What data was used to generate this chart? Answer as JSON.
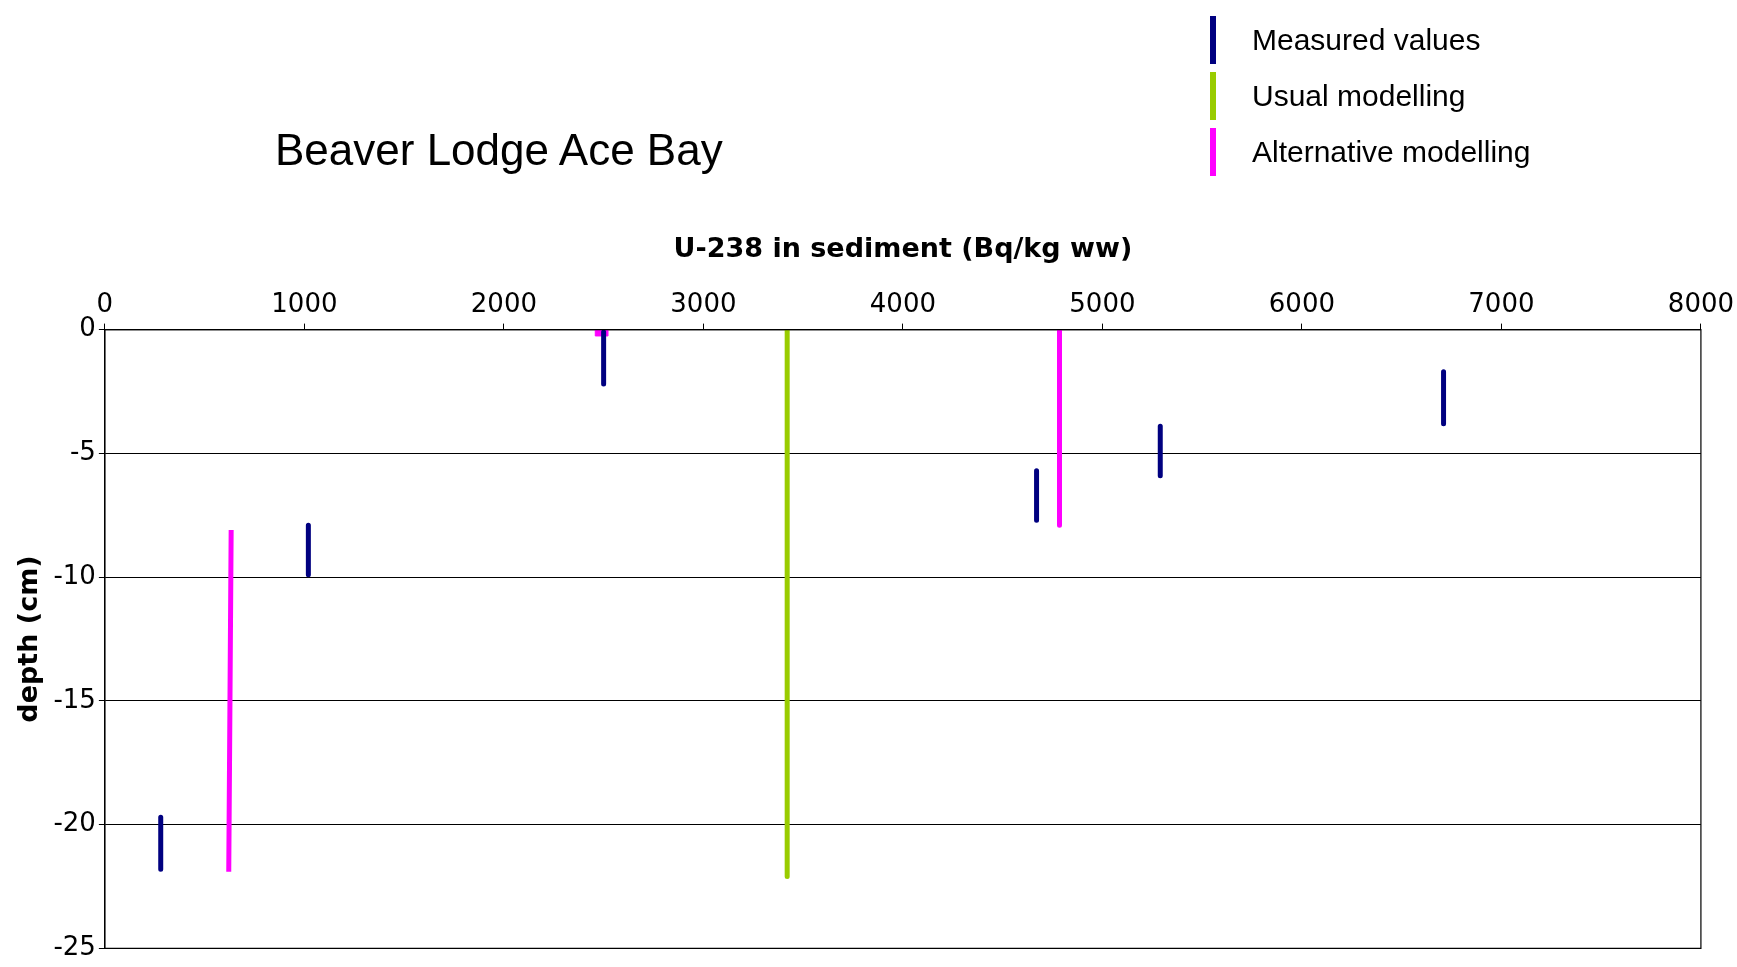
{
  "chart_data": {
    "type": "line",
    "title": "Beaver Lodge Ace Bay",
    "xlabel": "U-238 in sediment (Bq/kg ww)",
    "ylabel": "depth (cm)",
    "xlim": [
      0,
      8000
    ],
    "xticks": [
      0,
      1000,
      2000,
      3000,
      4000,
      5000,
      6000,
      7000,
      8000
    ],
    "ylim": [
      -25,
      0
    ],
    "yticks": [
      -25,
      -20,
      -15,
      -10,
      -5,
      0
    ],
    "grid": "y",
    "legend": "top right",
    "marker": "none",
    "line_style": "solid",
    "series": [
      {
        "name": "Measured values",
        "color": "#000080",
        "x": [
          280,
          280,
          null,
          1020,
          1020,
          null,
          2500,
          2500,
          null,
          4670,
          4670,
          null,
          5290,
          5290,
          null,
          6710,
          6710
        ],
        "values": [
          -19.7,
          -21.8,
          null,
          -7.9,
          -9.9,
          null,
          -0.1,
          -2.2,
          null,
          -5.7,
          -7.7,
          null,
          -3.9,
          -5.9,
          null,
          -1.7,
          -3.8
        ]
      },
      {
        "name": "Usual modelling",
        "color": "#99cc00",
        "x": [
          3420,
          3420
        ],
        "values": [
          0,
          -22.1
        ]
      },
      {
        "name": "Alternative modelling",
        "color": "#ff00ff",
        "x": [
          633,
          621,
          null,
          4785,
          4785
        ],
        "values": [
          -8.1,
          -21.9,
          null,
          0,
          -7.9
        ]
      },
      {
        "type": "scatter",
        "color": "#ff00ff",
        "marker": "square",
        "x": [
          2490
        ],
        "values": [
          0
        ]
      }
    ]
  }
}
